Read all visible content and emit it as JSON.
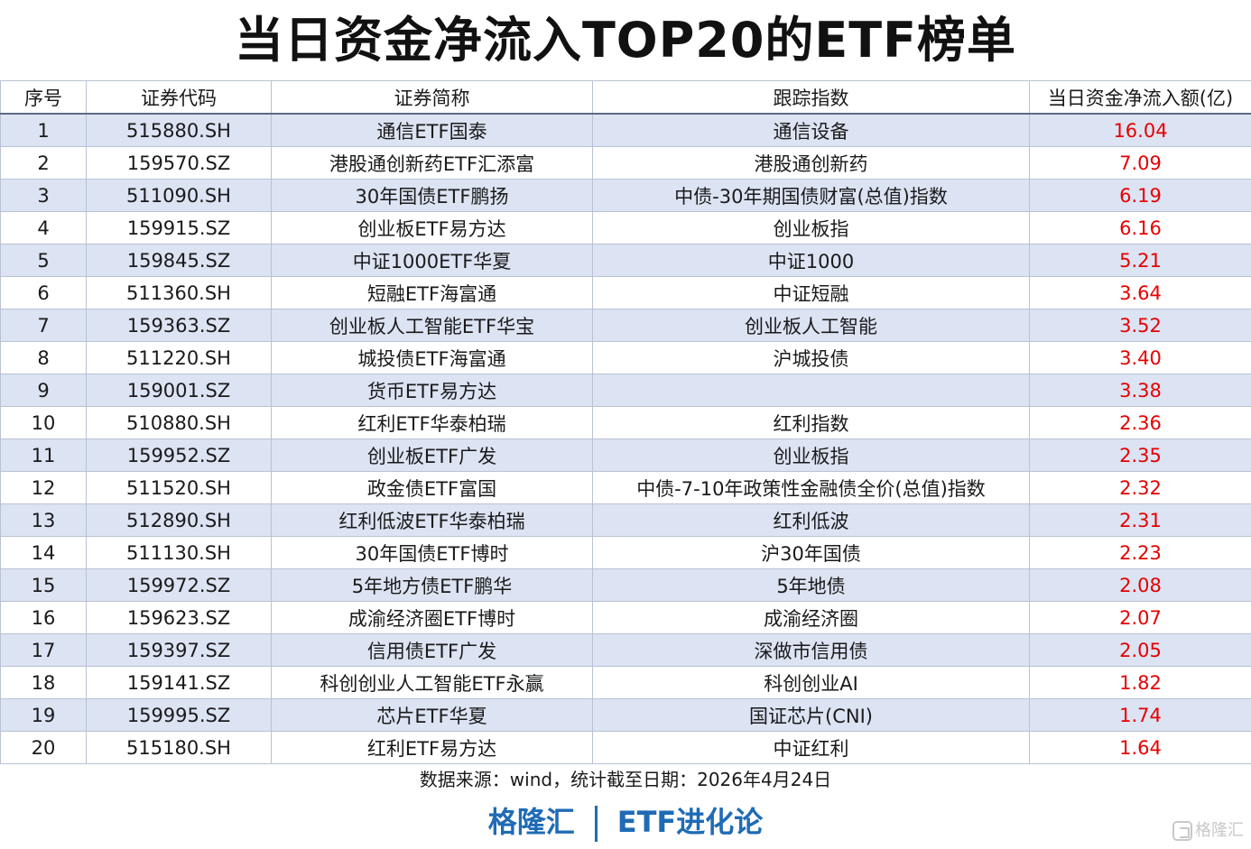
{
  "title": "当日资金净流入TOP20的ETF榜单",
  "table": {
    "headers": [
      "序号",
      "证券代码",
      "证券简称",
      "跟踪指数",
      "当日资金净流入额(亿)"
    ],
    "rows": [
      [
        "1",
        "515880.SH",
        "通信ETF国泰",
        "通信设备",
        "16.04"
      ],
      [
        "2",
        "159570.SZ",
        "港股通创新药ETF汇添富",
        "港股通创新药",
        "7.09"
      ],
      [
        "3",
        "511090.SH",
        "30年国债ETF鹏扬",
        "中债-30年期国债财富(总值)指数",
        "6.19"
      ],
      [
        "4",
        "159915.SZ",
        "创业板ETF易方达",
        "创业板指",
        "6.16"
      ],
      [
        "5",
        "159845.SZ",
        "中证1000ETF华夏",
        "中证1000",
        "5.21"
      ],
      [
        "6",
        "511360.SH",
        "短融ETF海富通",
        "中证短融",
        "3.64"
      ],
      [
        "7",
        "159363.SZ",
        "创业板人工智能ETF华宝",
        "创业板人工智能",
        "3.52"
      ],
      [
        "8",
        "511220.SH",
        "城投债ETF海富通",
        "沪城投债",
        "3.40"
      ],
      [
        "9",
        "159001.SZ",
        "货币ETF易方达",
        "",
        "3.38"
      ],
      [
        "10",
        "510880.SH",
        "红利ETF华泰柏瑞",
        "红利指数",
        "2.36"
      ],
      [
        "11",
        "159952.SZ",
        "创业板ETF广发",
        "创业板指",
        "2.35"
      ],
      [
        "12",
        "511520.SH",
        "政金债ETF富国",
        "中债-7-10年政策性金融债全价(总值)指数",
        "2.32"
      ],
      [
        "13",
        "512890.SH",
        "红利低波ETF华泰柏瑞",
        "红利低波",
        "2.31"
      ],
      [
        "14",
        "511130.SH",
        "30年国债ETF博时",
        "沪30年国债",
        "2.23"
      ],
      [
        "15",
        "159972.SZ",
        "5年地方债ETF鹏华",
        "5年地债",
        "2.08"
      ],
      [
        "16",
        "159623.SZ",
        "成渝经济圈ETF博时",
        "成渝经济圈",
        "2.07"
      ],
      [
        "17",
        "159397.SZ",
        "信用债ETF广发",
        "深做市信用债",
        "2.05"
      ],
      [
        "18",
        "159141.SZ",
        "科创创业人工智能ETF永赢",
        "科创创业AI",
        "1.82"
      ],
      [
        "19",
        "159995.SZ",
        "芯片ETF华夏",
        "国证芯片(CNI)",
        "1.74"
      ],
      [
        "20",
        "515180.SH",
        "红利ETF易方达",
        "中证红利",
        "1.64"
      ]
    ]
  },
  "source_note": "数据来源：wind，统计截至日期：2026年4月24日",
  "brand": {
    "left": "格隆汇",
    "right": "ETF进化论"
  },
  "watermark": {
    "text": "格隆汇",
    "icon": "glh-logo-icon"
  },
  "colors": {
    "value_red": "#e60000",
    "row_stripe": "#dce3f3",
    "brand_blue": "#1f6bb5"
  }
}
